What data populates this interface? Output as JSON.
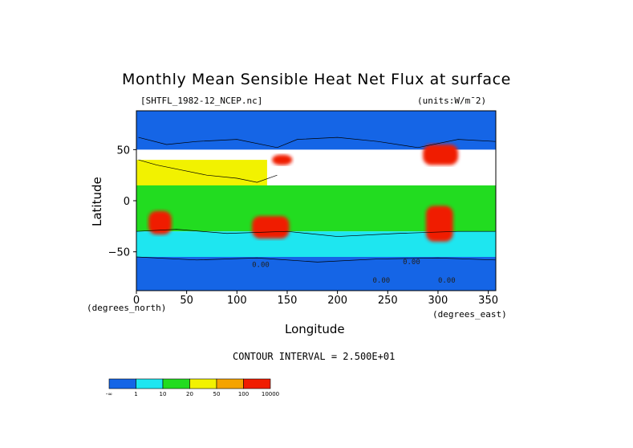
{
  "chart_data": {
    "type": "heatmap",
    "title": "Monthly Mean Sensible Heat Net Flux at surface",
    "subtitle_left": "[SHTFL_1982-12_NCEP.nc]",
    "units": "(units:W/m**2)",
    "units_display": "(units:W/m¯2)",
    "xlabel": "Longitude",
    "ylabel": "Latitude",
    "x_unit_label": "(degrees_east)",
    "y_unit_label": "(degrees_north)",
    "xlim": [
      0,
      357.5
    ],
    "ylim": [
      -88,
      88
    ],
    "x_ticks": [
      "0",
      "50",
      "100",
      "150",
      "200",
      "250",
      "300",
      "350"
    ],
    "x_tick_values": [
      0,
      50,
      100,
      150,
      200,
      250,
      300,
      350
    ],
    "y_ticks": [
      "50",
      "0",
      "−50"
    ],
    "y_tick_values": [
      50,
      0,
      -50
    ],
    "contour_interval_text": "CONTOUR INTERVAL = 2.500E+01",
    "contour_labels": [
      "0.00",
      "0.00",
      "0.00",
      "0.00"
    ],
    "colorbar": {
      "colors": [
        "#1565e6",
        "#1ee6f0",
        "#22dc20",
        "#f2f200",
        "#f5a300",
        "#f01c00"
      ],
      "labels": [
        "-∞",
        "1",
        "10",
        "20",
        "50",
        "100",
        "10000"
      ]
    },
    "regions": [
      {
        "name": "north-polar-and-continents-negative",
        "level": 0,
        "lon": [
          0,
          357.5
        ],
        "lat": [
          50,
          88
        ]
      },
      {
        "name": "northern-subtropics",
        "level": 3,
        "lon": [
          0,
          130
        ],
        "lat": [
          10,
          40
        ]
      },
      {
        "name": "tropical-ocean",
        "level": 2,
        "lon": [
          0,
          357.5
        ],
        "lat": [
          -30,
          15
        ]
      },
      {
        "name": "southern-ocean",
        "level": 1,
        "lon": [
          0,
          357.5
        ],
        "lat": [
          -55,
          -30
        ]
      },
      {
        "name": "antarctic-band",
        "level": 0,
        "lon": [
          0,
          357.5
        ],
        "lat": [
          -88,
          -55
        ]
      },
      {
        "name": "australia",
        "level": 5,
        "lon": [
          115,
          152
        ],
        "lat": [
          -37,
          -15
        ]
      },
      {
        "name": "southern-africa",
        "level": 5,
        "lon": [
          12,
          35
        ],
        "lat": [
          -33,
          -10
        ]
      },
      {
        "name": "south-america",
        "level": 5,
        "lon": [
          288,
          315
        ],
        "lat": [
          -40,
          -5
        ]
      },
      {
        "name": "gulf-stream",
        "level": 5,
        "lon": [
          285,
          320
        ],
        "lat": [
          35,
          55
        ]
      },
      {
        "name": "kuroshio",
        "level": 5,
        "lon": [
          135,
          155
        ],
        "lat": [
          35,
          45
        ]
      }
    ]
  }
}
